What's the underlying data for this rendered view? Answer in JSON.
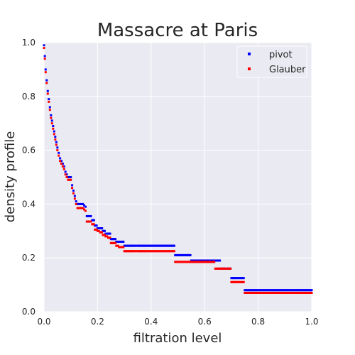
{
  "chart_data": {
    "type": "scatter",
    "title": "Massacre at Paris",
    "xlabel": "filtration level",
    "ylabel": "density profile",
    "xlim": [
      0,
      1
    ],
    "ylim": [
      0,
      1
    ],
    "xticks": [
      "0.0",
      "0.2",
      "0.4",
      "0.6",
      "0.8",
      "1.0"
    ],
    "yticks": [
      "0.0",
      "0.2",
      "0.4",
      "0.6",
      "0.8",
      "1.0"
    ],
    "grid": true,
    "legend_position": "top-right",
    "colors": {
      "plot_background": "#eaeaf2",
      "grid": "#ffffff"
    },
    "series": [
      {
        "name": "pivot",
        "color": "#0000ff",
        "x": [
          0.0,
          0.003,
          0.006,
          0.01,
          0.014,
          0.018,
          0.022,
          0.026,
          0.03,
          0.034,
          0.038,
          0.042,
          0.046,
          0.05,
          0.055,
          0.06,
          0.065,
          0.07,
          0.075,
          0.08,
          0.085,
          0.09,
          0.095,
          0.1,
          0.105,
          0.11,
          0.115,
          0.12,
          0.125,
          0.13,
          0.135,
          0.14,
          0.145,
          0.15,
          0.155,
          0.16,
          0.17,
          0.18,
          0.19,
          0.2,
          0.21,
          0.22,
          0.23,
          0.24,
          0.25,
          0.26,
          0.27,
          0.28,
          0.29,
          0.3,
          0.31,
          0.32,
          0.33,
          0.34,
          0.35,
          0.36,
          0.37,
          0.38,
          0.4,
          0.42,
          0.44,
          0.46,
          0.48,
          0.49,
          0.5,
          0.52,
          0.54,
          0.55,
          0.57,
          0.6,
          0.62,
          0.64,
          0.65,
          0.66,
          0.68,
          0.69,
          0.7,
          0.71,
          0.75,
          0.8,
          0.85,
          0.9,
          0.95,
          1.0
        ],
        "y": [
          0.99,
          0.95,
          0.9,
          0.86,
          0.82,
          0.79,
          0.76,
          0.73,
          0.71,
          0.69,
          0.67,
          0.65,
          0.63,
          0.61,
          0.59,
          0.57,
          0.56,
          0.55,
          0.54,
          0.52,
          0.51,
          0.5,
          0.5,
          0.5,
          0.47,
          0.45,
          0.43,
          0.41,
          0.4,
          0.4,
          0.4,
          0.4,
          0.4,
          0.395,
          0.39,
          0.355,
          0.355,
          0.34,
          0.32,
          0.31,
          0.31,
          0.3,
          0.29,
          0.29,
          0.27,
          0.27,
          0.26,
          0.26,
          0.26,
          0.245,
          0.245,
          0.245,
          0.245,
          0.245,
          0.245,
          0.245,
          0.245,
          0.245,
          0.245,
          0.245,
          0.245,
          0.245,
          0.245,
          0.21,
          0.21,
          0.21,
          0.21,
          0.19,
          0.19,
          0.19,
          0.19,
          0.19,
          0.19,
          0.16,
          0.16,
          0.16,
          0.125,
          0.125,
          0.08,
          0.08,
          0.08,
          0.08,
          0.08,
          0.08
        ]
      },
      {
        "name": "Glauber",
        "color": "#ff0000",
        "x": [
          0.0,
          0.003,
          0.006,
          0.01,
          0.014,
          0.018,
          0.022,
          0.026,
          0.03,
          0.034,
          0.038,
          0.042,
          0.046,
          0.05,
          0.055,
          0.06,
          0.065,
          0.07,
          0.075,
          0.08,
          0.085,
          0.09,
          0.095,
          0.1,
          0.105,
          0.11,
          0.115,
          0.12,
          0.125,
          0.13,
          0.135,
          0.14,
          0.145,
          0.15,
          0.155,
          0.16,
          0.17,
          0.18,
          0.19,
          0.2,
          0.21,
          0.22,
          0.23,
          0.24,
          0.25,
          0.26,
          0.27,
          0.28,
          0.29,
          0.3,
          0.31,
          0.32,
          0.33,
          0.34,
          0.35,
          0.36,
          0.37,
          0.38,
          0.4,
          0.42,
          0.44,
          0.46,
          0.48,
          0.49,
          0.5,
          0.52,
          0.54,
          0.55,
          0.57,
          0.6,
          0.62,
          0.64,
          0.65,
          0.66,
          0.68,
          0.69,
          0.7,
          0.71,
          0.75,
          0.8,
          0.85,
          0.9,
          0.95,
          1.0
        ],
        "y": [
          0.98,
          0.94,
          0.89,
          0.85,
          0.81,
          0.78,
          0.75,
          0.72,
          0.7,
          0.68,
          0.66,
          0.64,
          0.62,
          0.6,
          0.58,
          0.56,
          0.55,
          0.54,
          0.53,
          0.51,
          0.5,
          0.49,
          0.49,
          0.49,
          0.46,
          0.44,
          0.42,
          0.4,
          0.385,
          0.385,
          0.385,
          0.385,
          0.385,
          0.38,
          0.375,
          0.335,
          0.335,
          0.325,
          0.305,
          0.3,
          0.295,
          0.285,
          0.28,
          0.275,
          0.255,
          0.255,
          0.245,
          0.24,
          0.24,
          0.225,
          0.225,
          0.225,
          0.225,
          0.225,
          0.225,
          0.225,
          0.225,
          0.225,
          0.225,
          0.225,
          0.225,
          0.225,
          0.225,
          0.185,
          0.185,
          0.185,
          0.185,
          0.185,
          0.185,
          0.185,
          0.185,
          0.16,
          0.16,
          0.16,
          0.16,
          0.16,
          0.11,
          0.11,
          0.07,
          0.07,
          0.07,
          0.07,
          0.07,
          0.07
        ]
      }
    ]
  }
}
